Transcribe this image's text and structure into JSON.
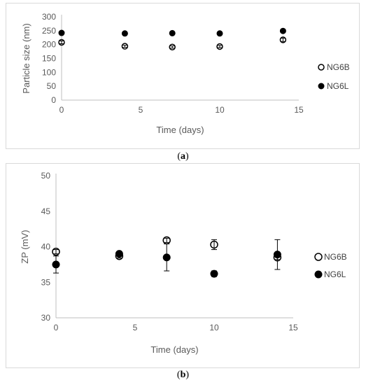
{
  "chart_data": [
    {
      "type": "scatter",
      "panel_label": "a",
      "title": "",
      "xlabel": "Time (days)",
      "ylabel": "Particle size (nm)",
      "xlim": [
        0,
        15
      ],
      "ylim": [
        0,
        300
      ],
      "xticks": [
        0,
        5,
        10,
        15
      ],
      "yticks": [
        0,
        50,
        100,
        150,
        200,
        250,
        300
      ],
      "grid": false,
      "legend_position": "right",
      "series": [
        {
          "name": "NG6B",
          "marker": "open-circle",
          "color": "#000000",
          "x": [
            0,
            4,
            7,
            10,
            14
          ],
          "y": [
            208,
            194,
            191,
            193,
            217
          ],
          "error": [
            5,
            4,
            4,
            4,
            6
          ]
        },
        {
          "name": "NG6L",
          "marker": "filled-circle",
          "color": "#000000",
          "x": [
            0,
            4,
            7,
            10,
            14
          ],
          "y": [
            242,
            240,
            241,
            240,
            249
          ],
          "error": [
            3,
            3,
            3,
            3,
            4
          ]
        }
      ]
    },
    {
      "type": "scatter",
      "panel_label": "b",
      "title": "",
      "xlabel": "Time (days)",
      "ylabel": "ZP (mV)",
      "xlim": [
        0,
        15
      ],
      "ylim": [
        30,
        50
      ],
      "xticks": [
        0,
        5,
        10,
        15
      ],
      "yticks": [
        30,
        35,
        40,
        45,
        50
      ],
      "grid": false,
      "legend_position": "right",
      "series": [
        {
          "name": "NG6B",
          "marker": "open-circle",
          "color": "#000000",
          "x": [
            0,
            4,
            7,
            10,
            14
          ],
          "y": [
            39.3,
            38.7,
            40.9,
            40.3,
            38.5
          ],
          "error": [
            0.3,
            0.3,
            0.3,
            0.7,
            0.3
          ]
        },
        {
          "name": "NG6L",
          "marker": "filled-circle",
          "color": "#000000",
          "x": [
            0,
            4,
            7,
            10,
            14
          ],
          "y": [
            37.5,
            39.0,
            38.5,
            36.2,
            38.9
          ],
          "error": [
            1.2,
            0.3,
            1.9,
            0.4,
            2.1
          ]
        }
      ]
    }
  ],
  "captions": {
    "a": "a",
    "b": "b"
  }
}
